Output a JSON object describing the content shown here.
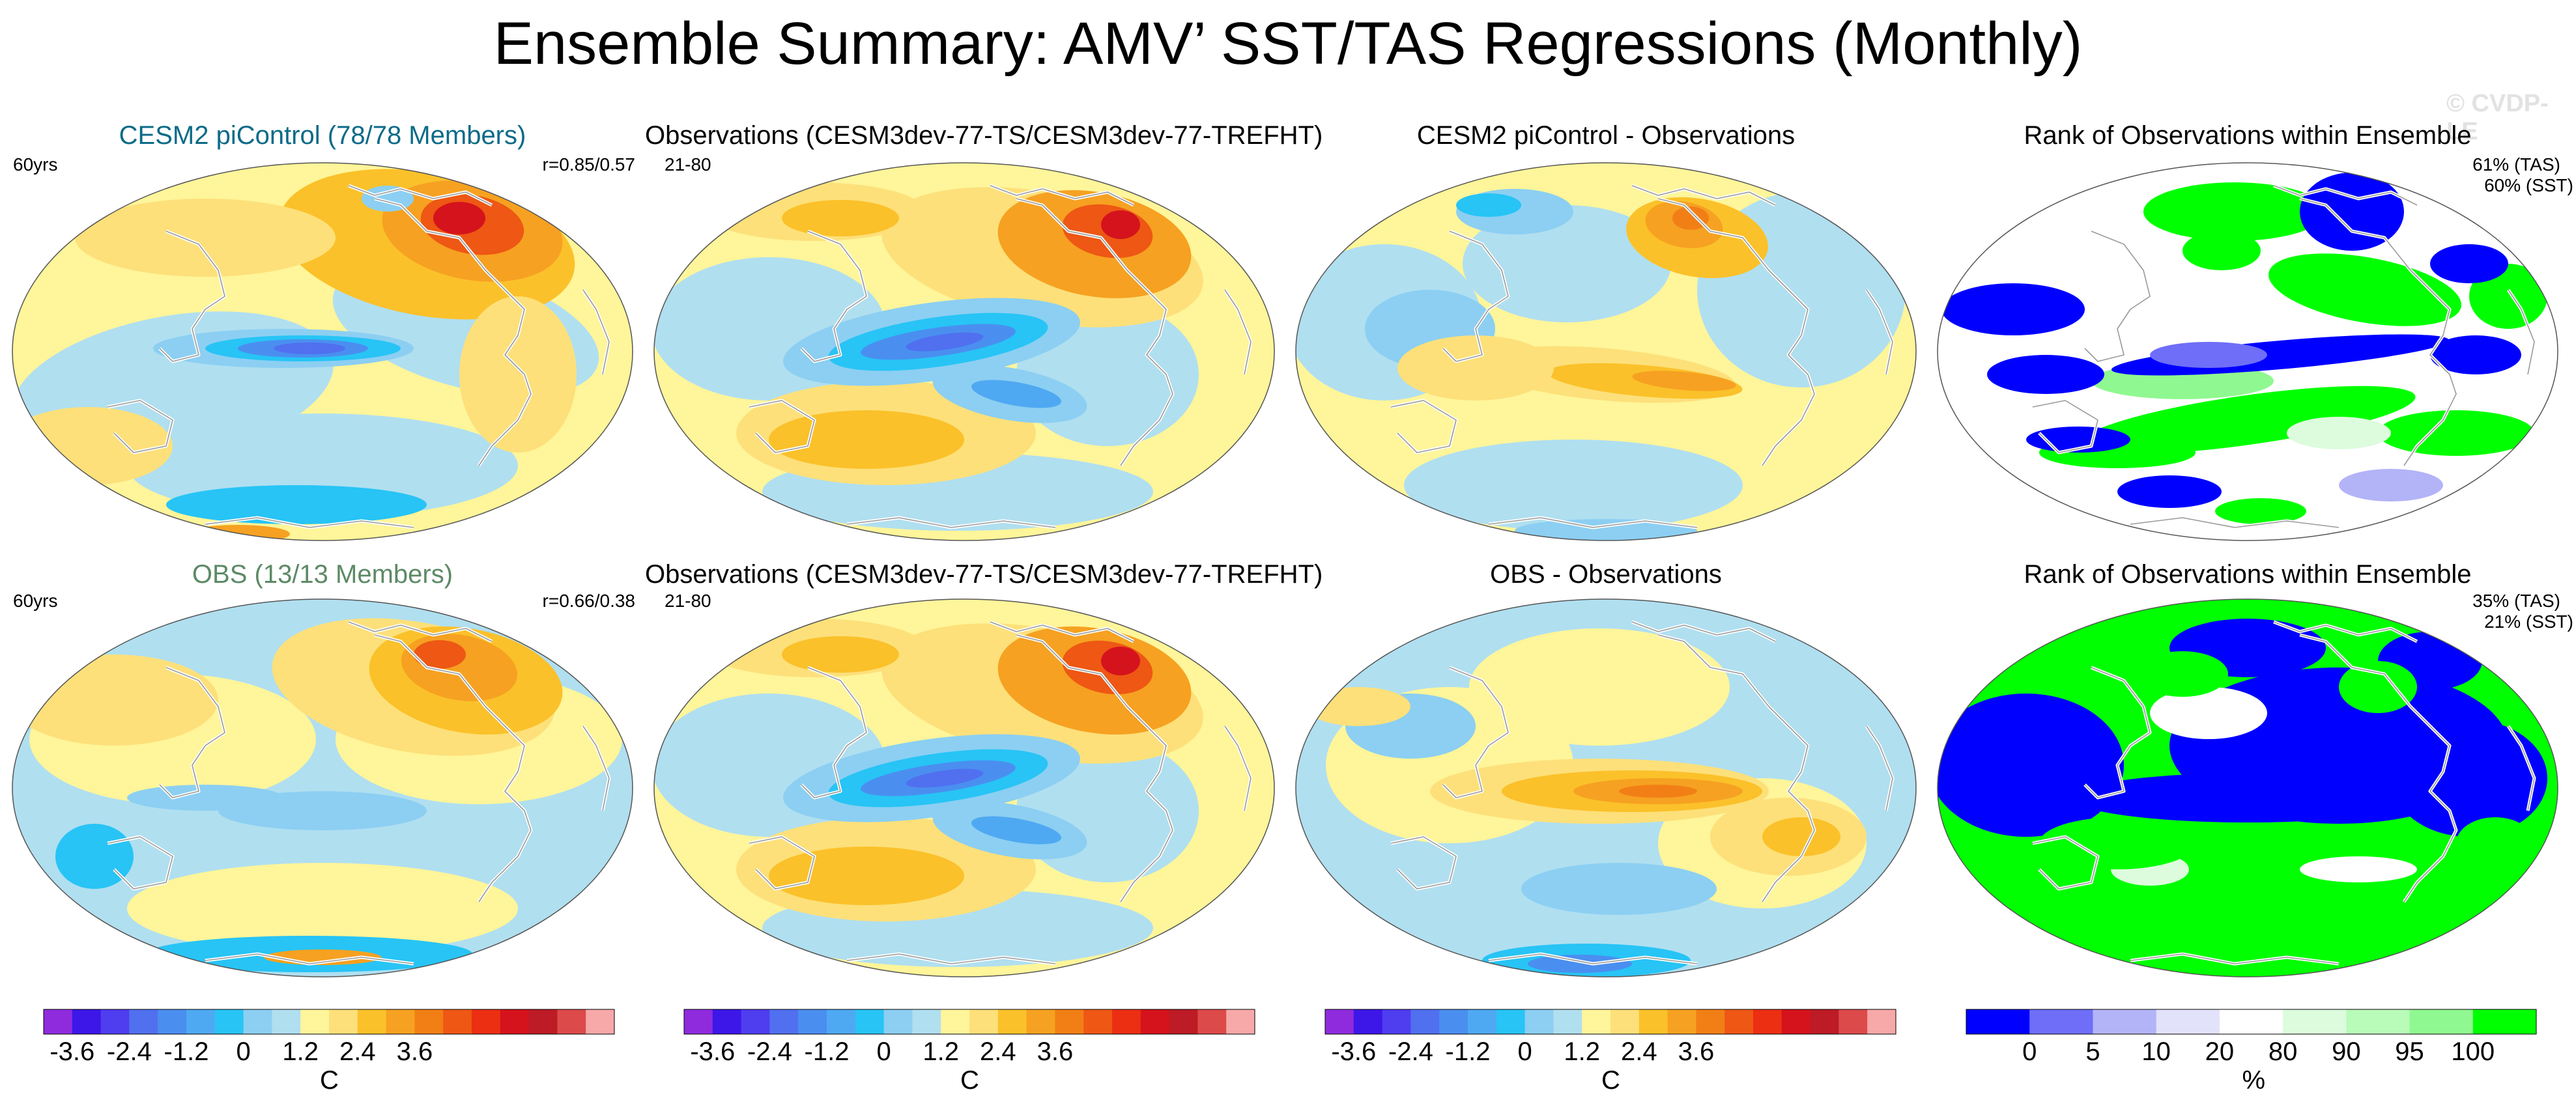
{
  "title": "Ensemble Summary: AMV’ SST/TAS Regressions (Monthly)",
  "watermark": "© CVDP-LE",
  "colors": {
    "diverging": [
      "#8f2bdd",
      "#3d16e8",
      "#4f3df0",
      "#5070f0",
      "#4a8ff0",
      "#4fa9f2",
      "#27c4f5",
      "#8ccff2",
      "#b0dff0",
      "#fff59a",
      "#fde07a",
      "#fbc12a",
      "#f6a121",
      "#f27f16",
      "#ee5714",
      "#ec2e12",
      "#d5131c",
      "#bd1b26",
      "#dc4a4a",
      "#f7a8a8"
    ],
    "rank": [
      "#0000ff",
      "#6e6ef8",
      "#b3b3f8",
      "#e2e2fa",
      "#ffffff",
      "#ddfcdd",
      "#b9fbb9",
      "#90f890",
      "#00ff00"
    ],
    "ptitle_cesm": "#0c6b88",
    "ptitle_obs": "#5d8a66"
  },
  "rows": [
    {
      "panels": [
        {
          "title": "CESM2 piControl (78/78 Members)",
          "left_label": "60yrs",
          "right_label": "r=0.85/0.57",
          "variant": "cesm"
        },
        {
          "title": "Observations (CESM3dev-77-TS/CESM3dev-77-TREFHT)",
          "left_label": "21-80",
          "right_label": "",
          "variant": "obs"
        },
        {
          "title": "CESM2 piControl - Observations",
          "left_label": "",
          "right_label": "",
          "variant": "diff"
        },
        {
          "title": "Rank of Observations within Ensemble",
          "left_label": "",
          "right_label": "61% (TAS)",
          "right_label2": "60% (SST)",
          "variant": "rank_sparse"
        }
      ]
    },
    {
      "panels": [
        {
          "title": "OBS (13/13 Members)",
          "left_label": "60yrs",
          "right_label": "r=0.66/0.38",
          "variant": "cesm2"
        },
        {
          "title": "Observations (CESM3dev-77-TS/CESM3dev-77-TREFHT)",
          "left_label": "21-80",
          "right_label": "",
          "variant": "obs"
        },
        {
          "title": "OBS - Observations",
          "left_label": "",
          "right_label": "",
          "variant": "diff2"
        },
        {
          "title": "Rank of Observations within Ensemble",
          "left_label": "",
          "right_label": "35% (TAS)",
          "right_label2": "21% (SST)",
          "variant": "rank_dense"
        }
      ]
    }
  ],
  "colorbars": [
    {
      "unit": "C",
      "ticks": [
        "-3.6",
        "-2.4",
        "-1.2",
        "0",
        "1.2",
        "2.4",
        "3.6"
      ],
      "levels": [
        -3.6,
        -2.4,
        -1.2,
        0,
        1.2,
        2.4,
        3.6
      ]
    },
    {
      "unit": "C",
      "ticks": [
        "-3.6",
        "-2.4",
        "-1.2",
        "0",
        "1.2",
        "2.4",
        "3.6"
      ],
      "levels": [
        -3.6,
        -2.4,
        -1.2,
        0,
        1.2,
        2.4,
        3.6
      ]
    },
    {
      "unit": "C",
      "ticks": [
        "-3.6",
        "-2.4",
        "-1.2",
        "0",
        "1.2",
        "2.4",
        "3.6"
      ],
      "levels": [
        -3.6,
        -2.4,
        -1.2,
        0,
        1.2,
        2.4,
        3.6
      ]
    },
    {
      "unit": "%",
      "ticks": [
        "0",
        "5",
        "10",
        "20",
        "80",
        "90",
        "95",
        "100"
      ],
      "levels": [
        0,
        5,
        10,
        20,
        80,
        90,
        95,
        100
      ]
    }
  ],
  "chart_data": [
    {
      "type": "heatmap",
      "title": "CESM2 piControl (78/78 Members)",
      "projection": "robinson",
      "units": "C",
      "range": [
        -3.6,
        3.6
      ],
      "annotation": [
        "60yrs",
        "r=0.85/0.57"
      ]
    },
    {
      "type": "heatmap",
      "title": "Observations (CESM3dev-77-TS/CESM3dev-77-TREFHT)",
      "projection": "robinson",
      "units": "C",
      "range": [
        -3.6,
        3.6
      ],
      "annotation": [
        "21-80"
      ]
    },
    {
      "type": "heatmap",
      "title": "CESM2 piControl - Observations",
      "projection": "robinson",
      "units": "C",
      "range": [
        -3.6,
        3.6
      ]
    },
    {
      "type": "heatmap",
      "title": "Rank of Observations within Ensemble",
      "projection": "robinson",
      "units": "%",
      "levels": [
        0,
        5,
        10,
        20,
        80,
        90,
        95,
        100
      ],
      "annotation": [
        "61% (TAS)",
        "60% (SST)"
      ]
    },
    {
      "type": "heatmap",
      "title": "OBS (13/13 Members)",
      "projection": "robinson",
      "units": "C",
      "range": [
        -3.6,
        3.6
      ],
      "annotation": [
        "60yrs",
        "r=0.66/0.38"
      ]
    },
    {
      "type": "heatmap",
      "title": "Observations (CESM3dev-77-TS/CESM3dev-77-TREFHT)",
      "projection": "robinson",
      "units": "C",
      "range": [
        -3.6,
        3.6
      ],
      "annotation": [
        "21-80"
      ]
    },
    {
      "type": "heatmap",
      "title": "OBS - Observations",
      "projection": "robinson",
      "units": "C",
      "range": [
        -3.6,
        3.6
      ]
    },
    {
      "type": "heatmap",
      "title": "Rank of Observations within Ensemble",
      "projection": "robinson",
      "units": "%",
      "levels": [
        0,
        5,
        10,
        20,
        80,
        90,
        95,
        100
      ],
      "annotation": [
        "35% (TAS)",
        "21% (SST)"
      ]
    }
  ]
}
